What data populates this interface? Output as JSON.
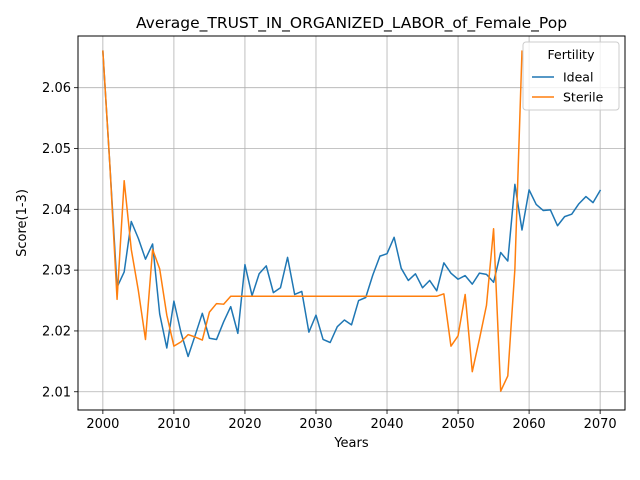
{
  "chart_data": {
    "type": "line",
    "title": "Average_TRUST_IN_ORGANIZED_LABOR_of_Female_Pop",
    "xlabel": "Years",
    "ylabel": "Score(1-3)",
    "xlim": [
      1996.5,
      2073.5
    ],
    "ylim": [
      2.007,
      2.0685
    ],
    "xticks": [
      2000,
      2010,
      2020,
      2030,
      2040,
      2050,
      2060,
      2070
    ],
    "xtick_labels": [
      "2000",
      "2010",
      "2020",
      "2030",
      "2040",
      "2050",
      "2060",
      "2070"
    ],
    "yticks": [
      2.01,
      2.02,
      2.03,
      2.04,
      2.05,
      2.06
    ],
    "ytick_labels": [
      "2.01",
      "2.02",
      "2.03",
      "2.04",
      "2.05",
      "2.06"
    ],
    "grid": true,
    "legend": {
      "title": "Fertility",
      "placement": "top-right"
    },
    "series": [
      {
        "name": "Ideal",
        "color": "#1f77b4",
        "x": [
          2000,
          2001,
          2002,
          2003,
          2004,
          2005,
          2006,
          2007,
          2008,
          2009,
          2010,
          2011,
          2012,
          2013,
          2014,
          2015,
          2016,
          2017,
          2018,
          2019,
          2020,
          2021,
          2022,
          2023,
          2024,
          2025,
          2026,
          2027,
          2028,
          2029,
          2030,
          2031,
          2032,
          2033,
          2034,
          2035,
          2036,
          2037,
          2038,
          2039,
          2040,
          2041,
          2042,
          2043,
          2044,
          2045,
          2046,
          2047,
          2048,
          2049,
          2050,
          2051,
          2052,
          2053,
          2054,
          2055,
          2056,
          2057,
          2058,
          2059,
          2060,
          2061,
          2062,
          2063,
          2064,
          2065,
          2066,
          2067,
          2068,
          2069,
          2070
        ],
        "values": [
          2.066,
          2.047,
          2.0272,
          2.0297,
          2.038,
          2.0352,
          2.0318,
          2.0343,
          2.0228,
          2.0172,
          2.0249,
          2.0197,
          2.0158,
          2.0193,
          2.0229,
          2.0188,
          2.0186,
          2.0215,
          2.024,
          2.0196,
          2.0309,
          2.0258,
          2.0294,
          2.0307,
          2.0263,
          2.0271,
          2.0321,
          2.026,
          2.0265,
          2.0198,
          2.0226,
          2.0186,
          2.0181,
          2.0207,
          2.0218,
          2.021,
          2.025,
          2.0255,
          2.0292,
          2.0323,
          2.0327,
          2.0354,
          2.0303,
          2.0283,
          2.0294,
          2.0271,
          2.0283,
          2.0266,
          2.0312,
          2.0295,
          2.0285,
          2.0291,
          2.0277,
          2.0295,
          2.0293,
          2.028,
          2.0329,
          2.0315,
          2.0441,
          2.0366,
          2.0432,
          2.0408,
          2.0398,
          2.0399,
          2.0373,
          2.0388,
          2.0392,
          2.0409,
          2.0421,
          2.0411,
          2.0431
        ]
      },
      {
        "name": "Sterile",
        "color": "#ff7f0e",
        "x": [
          2000,
          2001,
          2002,
          2003,
          2004,
          2005,
          2006,
          2007,
          2008,
          2009,
          2010,
          2011,
          2012,
          2013,
          2014,
          2015,
          2016,
          2017,
          2018,
          2019,
          2020,
          2021,
          2022,
          2023,
          2024,
          2025,
          2026,
          2027,
          2028,
          2029,
          2030,
          2031,
          2032,
          2033,
          2034,
          2035,
          2036,
          2037,
          2038,
          2039,
          2040,
          2041,
          2042,
          2043,
          2044,
          2045,
          2046,
          2047,
          2048,
          2049,
          2050,
          2051,
          2052,
          2053,
          2054,
          2055,
          2056,
          2057,
          2058,
          2059
        ],
        "values": [
          2.066,
          2.047,
          2.0252,
          2.0447,
          2.0334,
          2.0266,
          2.0186,
          2.0334,
          2.0302,
          2.0226,
          2.0175,
          2.0182,
          2.0194,
          2.019,
          2.0185,
          2.0231,
          2.0245,
          2.0244,
          2.0257,
          2.0257,
          2.0257,
          2.0257,
          2.0257,
          2.0257,
          2.0257,
          2.0257,
          2.0257,
          2.0257,
          2.0257,
          2.0257,
          2.0257,
          2.0257,
          2.0257,
          2.0257,
          2.0257,
          2.0257,
          2.0257,
          2.0257,
          2.0257,
          2.0257,
          2.0257,
          2.0257,
          2.0257,
          2.0257,
          2.0257,
          2.0257,
          2.0257,
          2.0257,
          2.0261,
          2.0175,
          2.0192,
          2.026,
          2.0133,
          2.0186,
          2.0242,
          2.0368,
          2.0101,
          2.0126,
          2.0302,
          2.066
        ]
      }
    ]
  }
}
